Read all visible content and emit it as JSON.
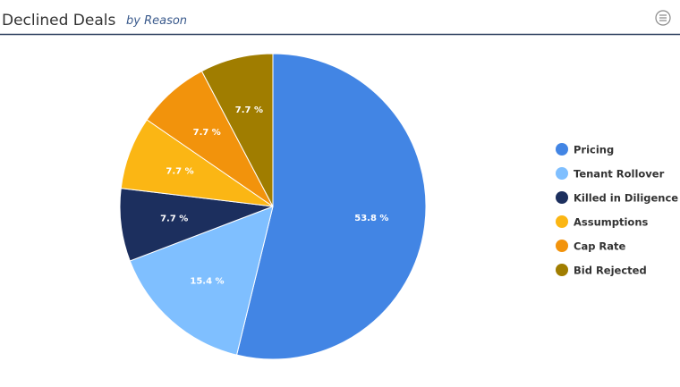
{
  "chart_data": {
    "type": "pie",
    "title": "Declined Deals",
    "subtitle": "by Reason",
    "categories": [
      "Pricing",
      "Tenant Rollover",
      "Killed in Diligence",
      "Assumptions",
      "Cap Rate",
      "Bid Rejected"
    ],
    "values": [
      53.8,
      15.4,
      7.7,
      7.7,
      7.7,
      7.7
    ],
    "value_labels": [
      "53.8 %",
      "15.4 %",
      "7.7 %",
      "7.7 %",
      "7.7 %",
      "7.7 %"
    ],
    "colors": [
      "#4285e4",
      "#7fbfff",
      "#1c2f5e",
      "#fbb614",
      "#f2930c",
      "#a07d00"
    ],
    "legend": "right"
  }
}
